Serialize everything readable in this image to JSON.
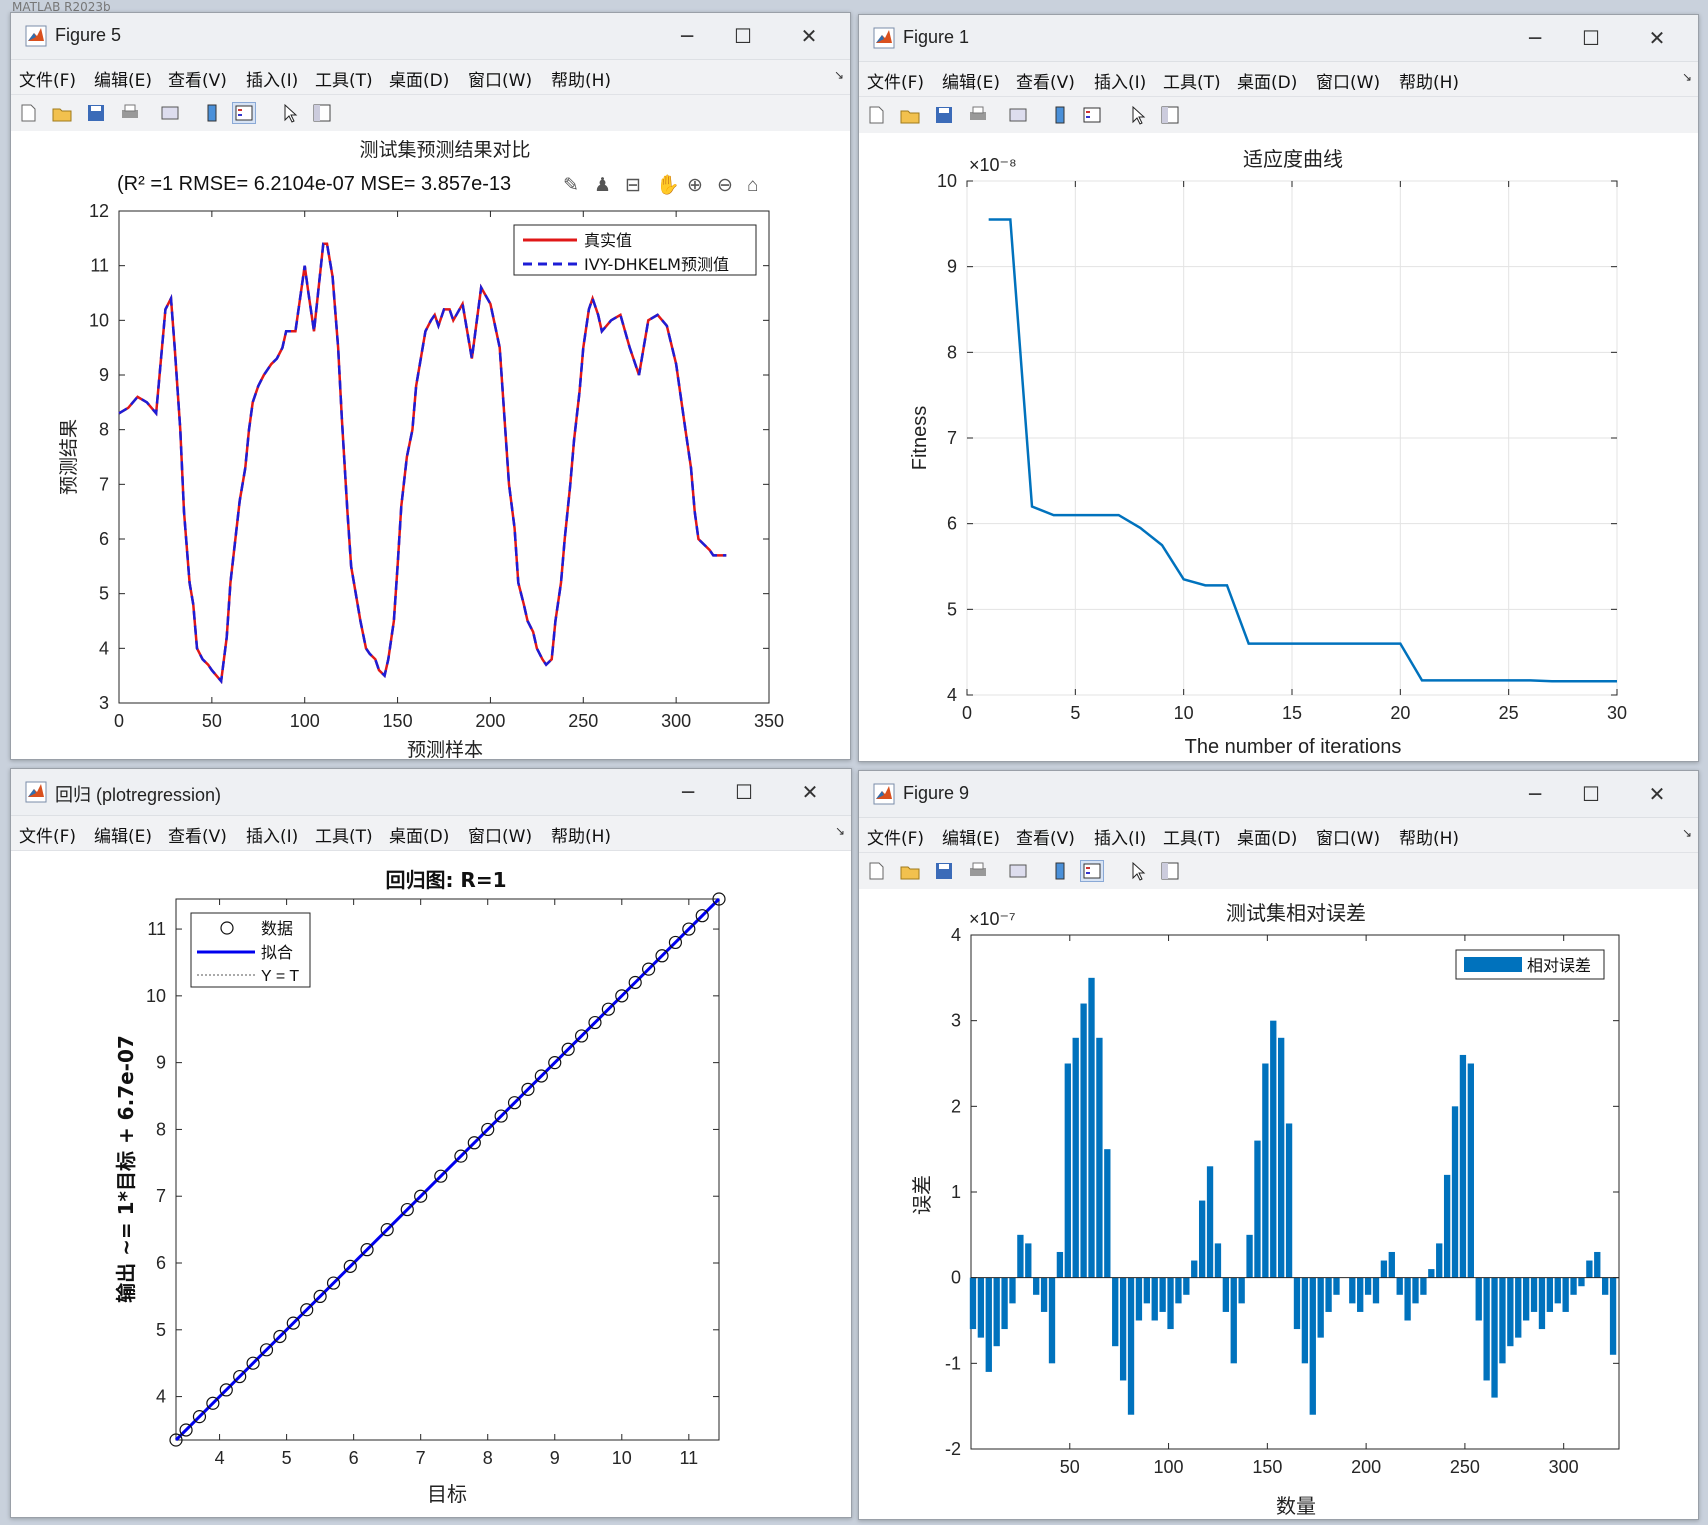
{
  "desktop_title": "MATLAB R2023b",
  "menus": [
    "文件(F)",
    "编辑(E)",
    "查看(V)",
    "插入(I)",
    "工具(T)",
    "桌面(D)",
    "窗口(W)",
    "帮助(H)"
  ],
  "win_controls": {
    "minimize": "─",
    "maximize": "☐",
    "close": "✕"
  },
  "fig5": {
    "title": "Figure 5",
    "plot_title": "测试集预测结果对比",
    "subtitle": "(R² =1 RMSE= 6.2104e-07 MSE= 3.857e-13",
    "xlabel": "预测样本",
    "ylabel": "预测结果",
    "legend": [
      "真实值",
      "IVY-DHKELM预测值"
    ],
    "xticks": [
      "0",
      "50",
      "100",
      "150",
      "200",
      "250",
      "300",
      "350"
    ],
    "yticks": [
      "3",
      "4",
      "5",
      "6",
      "7",
      "8",
      "9",
      "10",
      "11",
      "12"
    ]
  },
  "fig1": {
    "title": "Figure 1",
    "plot_title": "适应度曲线",
    "xlabel": "The number of iterations",
    "ylabel": "Fitness",
    "exponent": "×10⁻⁸",
    "xticks": [
      "0",
      "5",
      "10",
      "15",
      "20",
      "25",
      "30"
    ],
    "yticks": [
      "4",
      "5",
      "6",
      "7",
      "8",
      "9",
      "10"
    ]
  },
  "figReg": {
    "title": "回归 (plotregression)",
    "plot_title": "回归图: R=1",
    "xlabel": "目标",
    "ylabel": "输出 ~= 1*目标 + 6.7e-07",
    "legend": [
      "数据",
      "拟合",
      "Y = T"
    ],
    "xticks": [
      "4",
      "5",
      "6",
      "7",
      "8",
      "9",
      "10",
      "11"
    ],
    "yticks": [
      "4",
      "5",
      "6",
      "7",
      "8",
      "9",
      "10",
      "11"
    ]
  },
  "fig9": {
    "title": "Figure 9",
    "plot_title": "测试集相对误差",
    "xlabel": "数量",
    "ylabel": "误差",
    "exponent": "×10⁻⁷",
    "legend": "相对误差",
    "xticks": [
      "50",
      "100",
      "150",
      "200",
      "250",
      "300"
    ],
    "yticks": [
      "-2",
      "-1",
      "0",
      "1",
      "2",
      "3",
      "4"
    ]
  },
  "chart_data": [
    {
      "type": "line",
      "title": "测试集预测结果对比",
      "xlabel": "预测样本",
      "ylabel": "预测结果",
      "xlim": [
        0,
        350
      ],
      "ylim": [
        3,
        12
      ],
      "grid": false,
      "legend_position": "top-right",
      "x": [
        0,
        5,
        10,
        15,
        20,
        25,
        28,
        30,
        33,
        35,
        38,
        40,
        42,
        45,
        48,
        50,
        55,
        58,
        60,
        62,
        65,
        68,
        70,
        72,
        75,
        78,
        80,
        82,
        85,
        88,
        90,
        95,
        100,
        102,
        105,
        110,
        112,
        115,
        118,
        120,
        123,
        125,
        128,
        130,
        133,
        135,
        138,
        140,
        143,
        145,
        148,
        150,
        152,
        155,
        158,
        160,
        165,
        168,
        170,
        172,
        175,
        178,
        180,
        185,
        188,
        190,
        195,
        200,
        205,
        208,
        210,
        213,
        215,
        218,
        220,
        223,
        225,
        228,
        230,
        233,
        235,
        238,
        240,
        243,
        245,
        248,
        250,
        253,
        255,
        258,
        260,
        265,
        270,
        275,
        280,
        285,
        290,
        295,
        300,
        305,
        308,
        310,
        312,
        315,
        318,
        320,
        323,
        325,
        327
      ],
      "series": [
        {
          "name": "真实值",
          "values": [
            8.3,
            8.4,
            8.6,
            8.5,
            8.3,
            10.2,
            10.4,
            9.5,
            8.0,
            6.5,
            5.2,
            4.8,
            4.0,
            3.8,
            3.7,
            3.6,
            3.4,
            4.2,
            5.2,
            5.8,
            6.7,
            7.3,
            8.0,
            8.5,
            8.8,
            9.0,
            9.1,
            9.2,
            9.3,
            9.5,
            9.8,
            9.8,
            11.0,
            10.5,
            9.8,
            11.4,
            11.4,
            10.8,
            9.5,
            8.2,
            6.5,
            5.5,
            4.9,
            4.5,
            4.0,
            3.9,
            3.8,
            3.6,
            3.5,
            3.8,
            4.5,
            5.5,
            6.6,
            7.5,
            8.0,
            8.8,
            9.8,
            10.0,
            10.1,
            9.9,
            10.2,
            10.2,
            10.0,
            10.3,
            9.7,
            9.3,
            10.6,
            10.3,
            9.5,
            8.0,
            7.0,
            6.2,
            5.2,
            4.8,
            4.5,
            4.3,
            4.0,
            3.8,
            3.7,
            3.8,
            4.5,
            5.2,
            6.0,
            7.0,
            7.8,
            8.7,
            9.5,
            10.2,
            10.4,
            10.1,
            9.8,
            10.0,
            10.1,
            9.5,
            9.0,
            10.0,
            10.1,
            9.9,
            9.2,
            8.0,
            7.3,
            6.5,
            6.0,
            5.9,
            5.8,
            5.7,
            5.7,
            5.7,
            5.7
          ]
        }
      ]
    },
    {
      "type": "line",
      "title": "适应度曲线",
      "xlabel": "The number of iterations",
      "ylabel": "Fitness",
      "xlim": [
        0,
        30
      ],
      "ylim": [
        4,
        10
      ],
      "scale_exponent": -8,
      "grid": true,
      "x": [
        1,
        2,
        3,
        4,
        5,
        6,
        7,
        8,
        9,
        10,
        11,
        12,
        13,
        14,
        15,
        16,
        17,
        18,
        19,
        20,
        21,
        22,
        23,
        24,
        25,
        26,
        27,
        28,
        29,
        30
      ],
      "series": [
        {
          "name": "",
          "values": [
            9.55,
            9.55,
            6.2,
            6.1,
            6.1,
            6.1,
            6.1,
            5.95,
            5.75,
            5.35,
            5.28,
            5.28,
            4.6,
            4.6,
            4.6,
            4.6,
            4.6,
            4.6,
            4.6,
            4.6,
            4.17,
            4.17,
            4.17,
            4.17,
            4.17,
            4.17,
            4.16,
            4.16,
            4.16,
            4.16
          ]
        }
      ]
    },
    {
      "type": "scatter",
      "title": "回归图: R=1",
      "xlabel": "目标",
      "ylabel": "输出 ~= 1*目标 + 6.7e-07",
      "xlim": [
        3.35,
        11.45
      ],
      "ylim": [
        3.35,
        11.45
      ],
      "grid": false,
      "legend_position": "top-left",
      "x": [
        3.35,
        3.5,
        3.7,
        3.9,
        4.1,
        4.3,
        4.5,
        4.7,
        4.9,
        5.1,
        5.3,
        5.5,
        5.7,
        5.95,
        6.2,
        6.5,
        6.8,
        7.0,
        7.3,
        7.6,
        7.8,
        8.0,
        8.2,
        8.4,
        8.6,
        8.8,
        9.0,
        9.2,
        9.4,
        9.6,
        9.8,
        10.0,
        10.2,
        10.4,
        10.6,
        10.8,
        11.0,
        11.2,
        11.45
      ],
      "series": [
        {
          "name": "数据",
          "values": [
            3.35,
            3.5,
            3.7,
            3.9,
            4.1,
            4.3,
            4.5,
            4.7,
            4.9,
            5.1,
            5.3,
            5.5,
            5.7,
            5.95,
            6.2,
            6.5,
            6.8,
            7.0,
            7.3,
            7.6,
            7.8,
            8.0,
            8.2,
            8.4,
            8.6,
            8.8,
            9.0,
            9.2,
            9.4,
            9.6,
            9.8,
            10.0,
            10.2,
            10.4,
            10.6,
            10.8,
            11.0,
            11.2,
            11.45
          ]
        },
        {
          "name": "拟合",
          "values": [
            3.35,
            11.45
          ]
        },
        {
          "name": "Y = T",
          "values": [
            3.35,
            11.45
          ]
        }
      ]
    },
    {
      "type": "bar",
      "title": "测试集相对误差",
      "xlabel": "数量",
      "ylabel": "误差",
      "xlim": [
        0,
        328
      ],
      "ylim": [
        -2,
        4
      ],
      "scale_exponent": -7,
      "grid": false,
      "legend_position": "top-right",
      "x": [
        1,
        5,
        9,
        13,
        17,
        21,
        25,
        29,
        33,
        37,
        41,
        45,
        49,
        53,
        57,
        61,
        65,
        69,
        73,
        77,
        81,
        85,
        89,
        93,
        97,
        101,
        105,
        109,
        113,
        117,
        121,
        125,
        129,
        133,
        137,
        141,
        145,
        149,
        153,
        157,
        161,
        165,
        169,
        173,
        177,
        181,
        185,
        189,
        193,
        197,
        201,
        205,
        209,
        213,
        217,
        221,
        225,
        229,
        233,
        237,
        241,
        245,
        249,
        253,
        257,
        261,
        265,
        269,
        273,
        277,
        281,
        285,
        289,
        293,
        297,
        301,
        305,
        309,
        313,
        317,
        321,
        325
      ],
      "series": [
        {
          "name": "相对误差",
          "values": [
            -0.6,
            -0.7,
            -1.1,
            -0.8,
            -0.6,
            -0.3,
            0.5,
            0.4,
            -0.2,
            -0.4,
            -1.0,
            0.3,
            2.5,
            2.8,
            3.2,
            3.5,
            2.8,
            1.5,
            -0.8,
            -1.2,
            -1.6,
            -0.5,
            -0.3,
            -0.5,
            -0.4,
            -0.6,
            -0.3,
            -0.2,
            0.2,
            0.9,
            1.3,
            0.4,
            -0.4,
            -1.0,
            -0.3,
            0.5,
            1.6,
            2.5,
            3.0,
            2.8,
            1.8,
            -0.6,
            -1.0,
            -1.6,
            -0.7,
            -0.4,
            -0.2,
            0.0,
            -0.3,
            -0.4,
            -0.2,
            -0.3,
            0.2,
            0.3,
            -0.2,
            -0.5,
            -0.3,
            -0.2,
            0.1,
            0.4,
            1.2,
            2.0,
            2.6,
            2.5,
            -0.5,
            -1.2,
            -1.4,
            -1.0,
            -0.8,
            -0.7,
            -0.5,
            -0.4,
            -0.6,
            -0.4,
            -0.3,
            -0.4,
            -0.2,
            -0.1,
            0.2,
            0.3,
            -0.2,
            -0.9
          ]
        }
      ]
    }
  ]
}
